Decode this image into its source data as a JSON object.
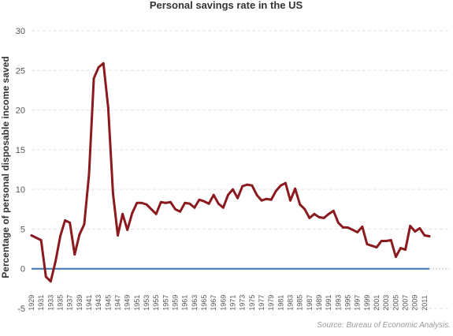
{
  "chart_data": {
    "type": "line",
    "title": "Personal savings rate in the US",
    "ylabel": "Percentage of personal disposable income saved",
    "xlabel": "",
    "source": "Source: Bureau of Economic Analysis.",
    "ylim": [
      -5,
      30
    ],
    "yticks": [
      -5,
      0,
      5,
      10,
      15,
      20,
      25,
      30
    ],
    "xlim": [
      1929,
      2012
    ],
    "xticks": [
      1929,
      1931,
      1933,
      1935,
      1937,
      1939,
      1941,
      1943,
      1945,
      1947,
      1949,
      1951,
      1953,
      1955,
      1957,
      1959,
      1961,
      1963,
      1965,
      1967,
      1969,
      1971,
      1973,
      1975,
      1977,
      1979,
      1981,
      1983,
      1985,
      1987,
      1989,
      1991,
      1993,
      1995,
      1997,
      1999,
      2001,
      2003,
      2005,
      2007,
      2009,
      2011
    ],
    "grid": true,
    "legend": "none",
    "colors": {
      "series": "#8b1a1f",
      "zero_line": "#3a75b8",
      "grid": "#e2e2e2"
    },
    "series": [
      {
        "x": [
          1929,
          1930,
          1931,
          1932,
          1933,
          1934,
          1935,
          1936,
          1937,
          1938,
          1939,
          1940,
          1941,
          1942,
          1943,
          1944,
          1945,
          1946,
          1947,
          1948,
          1949,
          1950,
          1951,
          1952,
          1953,
          1954,
          1955,
          1956,
          1957,
          1958,
          1959,
          1960,
          1961,
          1962,
          1963,
          1964,
          1965,
          1966,
          1967,
          1968,
          1969,
          1970,
          1971,
          1972,
          1973,
          1974,
          1975,
          1976,
          1977,
          1978,
          1979,
          1980,
          1981,
          1982,
          1983,
          1984,
          1985,
          1986,
          1987,
          1988,
          1989,
          1990,
          1991,
          1992,
          1993,
          1994,
          1995,
          1996,
          1997,
          1998,
          1999,
          2000,
          2001,
          2002,
          2003,
          2004,
          2005,
          2006,
          2007,
          2008,
          2009,
          2010,
          2011,
          2012
        ],
        "values": [
          4.2,
          3.9,
          3.6,
          -1.0,
          -1.6,
          0.9,
          4.1,
          6.1,
          5.8,
          1.8,
          4.3,
          5.6,
          11.9,
          24.0,
          25.4,
          25.9,
          20.3,
          9.5,
          4.2,
          6.9,
          4.9,
          7.0,
          8.3,
          8.3,
          8.1,
          7.5,
          6.9,
          8.4,
          8.3,
          8.4,
          7.5,
          7.2,
          8.3,
          8.2,
          7.7,
          8.7,
          8.5,
          8.2,
          9.3,
          8.2,
          7.7,
          9.3,
          10.0,
          8.9,
          10.4,
          10.6,
          10.5,
          9.3,
          8.6,
          8.8,
          8.7,
          9.8,
          10.5,
          10.8,
          8.6,
          10.1,
          8.1,
          7.5,
          6.4,
          6.9,
          6.5,
          6.4,
          6.9,
          7.3,
          5.8,
          5.2,
          5.2,
          4.9,
          4.6,
          5.3,
          3.1,
          2.9,
          2.7,
          3.5,
          3.5,
          3.6,
          1.5,
          2.6,
          2.4,
          5.4,
          4.7,
          5.1,
          4.2,
          4.1
        ]
      }
    ]
  }
}
